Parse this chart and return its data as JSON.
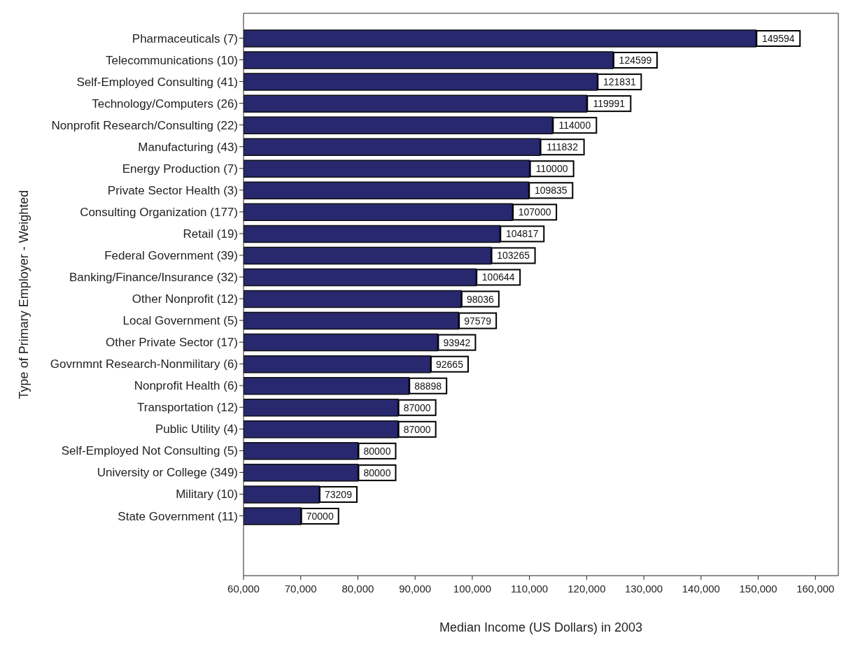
{
  "chart_data": {
    "type": "bar",
    "orientation": "horizontal",
    "xlabel": "Median Income (US Dollars) in 2003",
    "ylabel": "Type of Primary Employer - Weighted",
    "categories": [
      "Pharmaceuticals (7)",
      "Telecommunications (10)",
      "Self-Employed Consulting (41)",
      "Technology/Computers (26)",
      "Nonprofit Research/Consulting (22)",
      "Manufacturing (43)",
      "Energy Production (7)",
      "Private Sector Health (3)",
      "Consulting Organization (177)",
      "Retail (19)",
      "Federal Government (39)",
      "Banking/Finance/Insurance (32)",
      "Other Nonprofit (12)",
      "Local Government (5)",
      "Other Private Sector (17)",
      "Govrnmnt Research-Nonmilitary (6)",
      "Nonprofit Health (6)",
      "Transportation (12)",
      "Public Utility (4)",
      "Self-Employed Not Consulting (5)",
      "University or College (349)",
      "Military (10)",
      "State Government (11)"
    ],
    "values": [
      149594,
      124599,
      121831,
      119991,
      114000,
      111832,
      110000,
      109835,
      107000,
      104817,
      103265,
      100644,
      98036,
      97579,
      93942,
      92665,
      88898,
      87000,
      87000,
      80000,
      80000,
      73209,
      70000
    ],
    "color": "#28286e",
    "data_labels": true,
    "grid": false,
    "legend": false,
    "xlim": [
      60000,
      164000
    ],
    "xticks": [
      {
        "value": 60000,
        "label": "60,000"
      },
      {
        "value": 70000,
        "label": "70,000"
      },
      {
        "value": 80000,
        "label": "80,000"
      },
      {
        "value": 90000,
        "label": "90,000"
      },
      {
        "value": 100000,
        "label": "100,000"
      },
      {
        "value": 110000,
        "label": "110,000"
      },
      {
        "value": 120000,
        "label": "120,000"
      },
      {
        "value": 130000,
        "label": "130,000"
      },
      {
        "value": 140000,
        "label": "140,000"
      },
      {
        "value": 150000,
        "label": "150,000"
      },
      {
        "value": 160000,
        "label": "160,000"
      }
    ]
  }
}
